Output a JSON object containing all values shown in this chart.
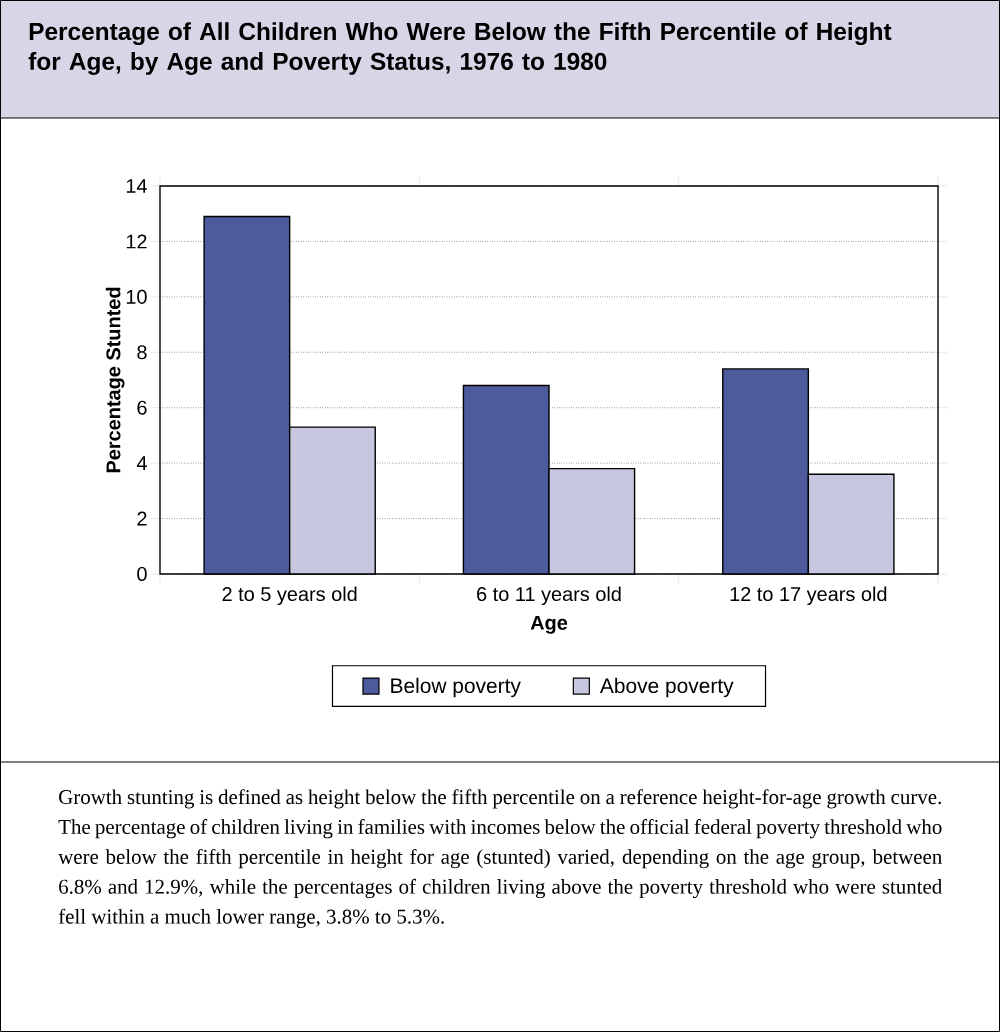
{
  "chart_data": {
    "type": "bar",
    "title": "Percentage of All Children Who Were Below the Fifth Percentile of Height for Age, by Age and Poverty Status, 1976 to 1980",
    "xlabel": "Age",
    "ylabel": "Percentage Stunted",
    "categories": [
      "2 to 5 years old",
      "6 to 11 years old",
      "12 to 17 years old"
    ],
    "series": [
      {
        "name": "Below poverty",
        "color": "#4d5a9c",
        "values": [
          12.9,
          6.8,
          7.4
        ]
      },
      {
        "name": "Above poverty",
        "color": "#c7c8e0",
        "values": [
          5.3,
          3.8,
          3.6
        ]
      }
    ],
    "ylim": [
      0,
      14
    ],
    "yticks": [
      0,
      2,
      4,
      6,
      8,
      10,
      12,
      14
    ],
    "grid": "y",
    "legend": "bottom",
    "annotations": [
      "Growth stunting is defined as height below the fifth percentile on a reference height-for-age growth curve. The percentage of children living in families with incomes below the official federal poverty threshold who were below the fifth percentile in height for age (stunted) varied, depending on the age group, between 6.8% and 12.9%, while the percentages of children living above the poverty threshold who were stunted fell within a much lower range, 3.8% to 5.3%."
    ]
  }
}
